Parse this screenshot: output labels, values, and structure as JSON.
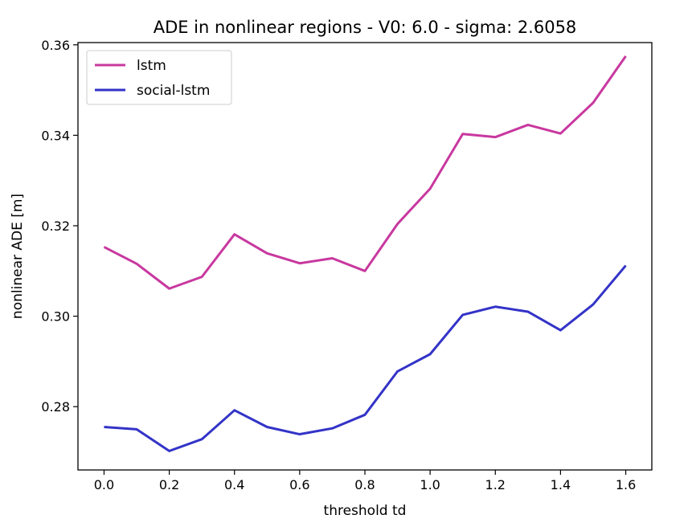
{
  "chart_data": {
    "type": "line",
    "title": "ADE in nonlinear regions - V0: 6.0 - sigma: 2.6058",
    "xlabel": "threshold td",
    "ylabel": "nonlinear ADE [m]",
    "xlim": [
      -0.08,
      1.68
    ],
    "ylim": [
      0.266,
      0.3605
    ],
    "xticks": [
      0.0,
      0.2,
      0.4,
      0.6,
      0.8,
      1.0,
      1.2,
      1.4,
      1.6
    ],
    "xtick_labels": [
      "0.0",
      "0.2",
      "0.4",
      "0.6",
      "0.8",
      "1.0",
      "1.2",
      "1.4",
      "1.6"
    ],
    "yticks": [
      0.28,
      0.3,
      0.32,
      0.34,
      0.36
    ],
    "ytick_labels": [
      "0.28",
      "0.30",
      "0.32",
      "0.34",
      "0.36"
    ],
    "grid": false,
    "legend_position": "top-left",
    "x": [
      0.0,
      0.1,
      0.2,
      0.3,
      0.4,
      0.5,
      0.6,
      0.7,
      0.8,
      0.9,
      1.0,
      1.1,
      1.2,
      1.3,
      1.4,
      1.5,
      1.6
    ],
    "series": [
      {
        "name": "lstm",
        "color": "#c8389f",
        "values": [
          0.3153,
          0.3116,
          0.3061,
          0.3087,
          0.3181,
          0.3139,
          0.3117,
          0.3128,
          0.31,
          0.3204,
          0.3282,
          0.3403,
          0.3396,
          0.3423,
          0.3404,
          0.3472,
          0.3575
        ]
      },
      {
        "name": "social-lstm",
        "color": "#3333c8",
        "values": [
          0.2755,
          0.275,
          0.2702,
          0.2728,
          0.2792,
          0.2755,
          0.2739,
          0.2752,
          0.2782,
          0.2878,
          0.2916,
          0.3003,
          0.3021,
          0.301,
          0.2969,
          0.3026,
          0.3112
        ]
      }
    ]
  }
}
